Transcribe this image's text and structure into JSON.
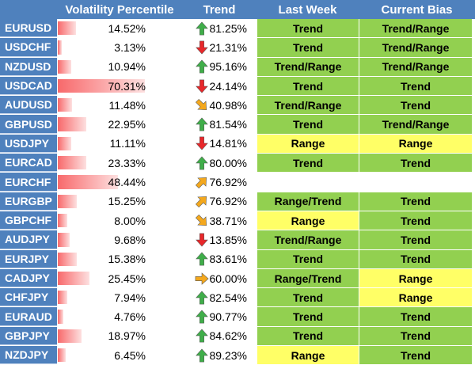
{
  "headers": {
    "volatility": "Volatility Percentile",
    "trend": "Trend",
    "last_week": "Last Week",
    "current_bias": "Current Bias"
  },
  "colors": {
    "header_bg": "#4f81bd",
    "green": "#92d050",
    "yellow": "#ffff66",
    "bar": "#f8696b",
    "arrow_up": "#3fae49",
    "arrow_down": "#e8272a",
    "arrow_diag": "#f4a81d"
  },
  "rows": [
    {
      "pair": "EURUSD",
      "vol": "14.52%",
      "vol_pct": 14.52,
      "trend": "81.25%",
      "dir": "up",
      "last_week": "Trend",
      "lw_color": "green",
      "bias": "Trend/Range",
      "bias_color": "green"
    },
    {
      "pair": "USDCHF",
      "vol": "3.13%",
      "vol_pct": 3.13,
      "trend": "21.31%",
      "dir": "down",
      "last_week": "Trend",
      "lw_color": "green",
      "bias": "Trend/Range",
      "bias_color": "green"
    },
    {
      "pair": "NZDUSD",
      "vol": "10.94%",
      "vol_pct": 10.94,
      "trend": "95.16%",
      "dir": "up",
      "last_week": "Trend/Range",
      "lw_color": "green",
      "bias": "Trend/Range",
      "bias_color": "green"
    },
    {
      "pair": "USDCAD",
      "vol": "70.31%",
      "vol_pct": 70.31,
      "trend": "24.14%",
      "dir": "down",
      "last_week": "Trend",
      "lw_color": "green",
      "bias": "Trend",
      "bias_color": "green"
    },
    {
      "pair": "AUDUSD",
      "vol": "11.48%",
      "vol_pct": 11.48,
      "trend": "40.98%",
      "dir": "down-right",
      "last_week": "Trend/Range",
      "lw_color": "green",
      "bias": "Trend",
      "bias_color": "green"
    },
    {
      "pair": "GBPUSD",
      "vol": "22.95%",
      "vol_pct": 22.95,
      "trend": "81.54%",
      "dir": "up",
      "last_week": "Trend",
      "lw_color": "green",
      "bias": "Trend/Range",
      "bias_color": "green"
    },
    {
      "pair": "USDJPY",
      "vol": "11.11%",
      "vol_pct": 11.11,
      "trend": "14.81%",
      "dir": "down",
      "last_week": "Range",
      "lw_color": "yellow",
      "bias": "Range",
      "bias_color": "yellow"
    },
    {
      "pair": "EURCAD",
      "vol": "23.33%",
      "vol_pct": 23.33,
      "trend": "80.00%",
      "dir": "up",
      "last_week": "Trend",
      "lw_color": "green",
      "bias": "Trend",
      "bias_color": "green"
    },
    {
      "pair": "EURCHF",
      "vol": "48.44%",
      "vol_pct": 48.44,
      "trend": "76.92%",
      "dir": "up-right",
      "last_week": "",
      "lw_color": "white",
      "bias": "",
      "bias_color": "white"
    },
    {
      "pair": "EURGBP",
      "vol": "15.25%",
      "vol_pct": 15.25,
      "trend": "76.92%",
      "dir": "up-right",
      "last_week": "Range/Trend",
      "lw_color": "green",
      "bias": "Trend",
      "bias_color": "green"
    },
    {
      "pair": "GBPCHF",
      "vol": "8.00%",
      "vol_pct": 8.0,
      "trend": "38.71%",
      "dir": "down-right",
      "last_week": "Range",
      "lw_color": "yellow",
      "bias": "Trend",
      "bias_color": "green"
    },
    {
      "pair": "AUDJPY",
      "vol": "9.68%",
      "vol_pct": 9.68,
      "trend": "13.85%",
      "dir": "down",
      "last_week": "Trend/Range",
      "lw_color": "green",
      "bias": "Trend",
      "bias_color": "green"
    },
    {
      "pair": "EURJPY",
      "vol": "15.38%",
      "vol_pct": 15.38,
      "trend": "83.61%",
      "dir": "up",
      "last_week": "Trend",
      "lw_color": "green",
      "bias": "Trend",
      "bias_color": "green"
    },
    {
      "pair": "CADJPY",
      "vol": "25.45%",
      "vol_pct": 25.45,
      "trend": "60.00%",
      "dir": "right",
      "last_week": "Range/Trend",
      "lw_color": "green",
      "bias": "Range",
      "bias_color": "yellow"
    },
    {
      "pair": "CHFJPY",
      "vol": "7.94%",
      "vol_pct": 7.94,
      "trend": "82.54%",
      "dir": "up",
      "last_week": "Trend",
      "lw_color": "green",
      "bias": "Range",
      "bias_color": "yellow"
    },
    {
      "pair": "EURAUD",
      "vol": "4.76%",
      "vol_pct": 4.76,
      "trend": "90.77%",
      "dir": "up",
      "last_week": "Trend",
      "lw_color": "green",
      "bias": "Trend",
      "bias_color": "green"
    },
    {
      "pair": "GBPJPY",
      "vol": "18.97%",
      "vol_pct": 18.97,
      "trend": "84.62%",
      "dir": "up",
      "last_week": "Trend",
      "lw_color": "green",
      "bias": "Trend",
      "bias_color": "green"
    },
    {
      "pair": "NZDJPY",
      "vol": "6.45%",
      "vol_pct": 6.45,
      "trend": "89.23%",
      "dir": "up",
      "last_week": "Range",
      "lw_color": "yellow",
      "bias": "Trend",
      "bias_color": "green"
    }
  ]
}
